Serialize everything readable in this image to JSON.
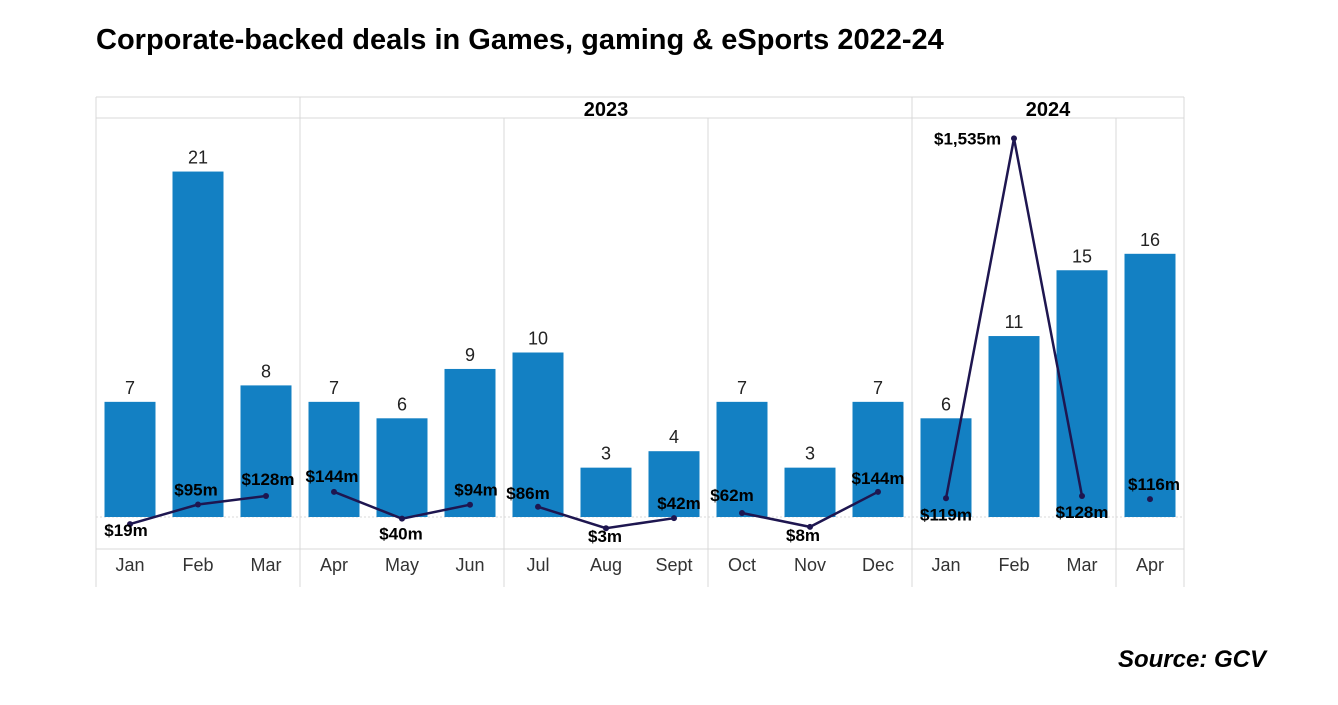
{
  "title": "Corporate-backed deals in Games, gaming & eSports 2022-24",
  "source": "Source: GCV",
  "colors": {
    "bar": "#1380c3",
    "line": "#1e1650",
    "grid": "#d9d9d9"
  },
  "chart_data": {
    "type": "bar",
    "groups": [
      {
        "label": "",
        "size": 3
      },
      {
        "label": "2023",
        "size": 9
      },
      {
        "label": "2024",
        "size": 4
      }
    ],
    "categories": [
      "Jan",
      "Feb",
      "Mar",
      "Apr",
      "May",
      "Jun",
      "Jul",
      "Aug",
      "Sept",
      "Oct",
      "Nov",
      "Dec",
      "Jan",
      "Feb",
      "Mar",
      "Apr"
    ],
    "series": [
      {
        "kind": "bar",
        "values": [
          7,
          21,
          8,
          7,
          6,
          9,
          10,
          3,
          4,
          7,
          3,
          7,
          6,
          11,
          15,
          16
        ],
        "labels": [
          "7",
          "21",
          "8",
          "7",
          "6",
          "9",
          "10",
          "3",
          "4",
          "7",
          "3",
          "7",
          "6",
          "11",
          "15",
          "16"
        ]
      },
      {
        "kind": "line",
        "values": [
          19,
          95,
          128,
          144,
          40,
          94,
          86,
          3,
          42,
          62,
          8,
          144,
          119,
          1535,
          128,
          116
        ],
        "labels": [
          "$19m",
          "$95m",
          "$128m",
          "$144m",
          "$40m",
          "$94m",
          "$86m",
          "$3m",
          "$42m",
          "$62m",
          "$8m",
          "$144m",
          "$119m",
          "$1,535m",
          "$128m",
          "$116m"
        ],
        "segments": [
          [
            0,
            2
          ],
          [
            3,
            5
          ],
          [
            6,
            8
          ],
          [
            9,
            11
          ],
          [
            12,
            14
          ],
          [
            15,
            15
          ]
        ]
      }
    ],
    "grid": true
  }
}
